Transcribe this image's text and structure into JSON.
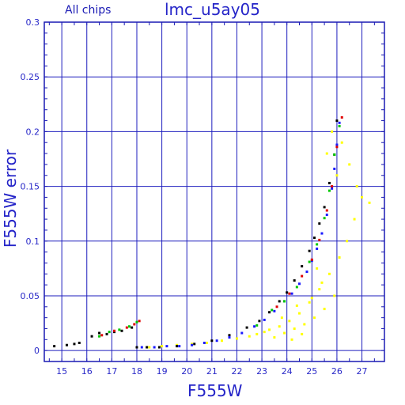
{
  "chart_data": {
    "type": "scatter",
    "title": "lmc_u5ay05",
    "subtitle": "All chips",
    "xlabel": "F555W",
    "ylabel": "F555W error",
    "xlim": [
      14.3,
      27.9
    ],
    "ylim": [
      -0.01,
      0.3
    ],
    "x_ticks": [
      "15",
      "16",
      "17",
      "18",
      "19",
      "20",
      "21",
      "22",
      "23",
      "24",
      "25",
      "26",
      "27"
    ],
    "y_ticks": [
      "0",
      "0.05",
      "0.1",
      "0.15",
      "0.2",
      "0.25",
      "0.3"
    ],
    "grid": true,
    "colors": {
      "axis": "#1a1ab4",
      "grid": "#1e1ebe",
      "tick_label": "#2828c8",
      "chip_black": "#000000",
      "chip_blue": "#1a1aff",
      "chip_green": "#00c800",
      "chip_red": "#e00000",
      "chip_yellow": "#ffff00"
    },
    "series": [
      {
        "color": "black",
        "x": [
          14.7,
          15.2,
          15.5,
          15.7,
          16.2,
          16.5,
          16.8,
          17.1,
          17.4,
          17.8,
          18.0,
          18.4,
          18.9,
          19.6,
          20.3,
          21.0,
          21.7,
          22.4,
          22.9,
          23.3,
          23.7,
          24.0,
          24.3,
          24.6,
          24.9,
          25.1,
          25.3,
          25.5,
          25.7,
          25.9,
          26.0
        ],
        "y": [
          0.004,
          0.005,
          0.006,
          0.007,
          0.013,
          0.016,
          0.015,
          0.017,
          0.018,
          0.021,
          0.003,
          0.003,
          0.003,
          0.004,
          0.006,
          0.009,
          0.014,
          0.021,
          0.027,
          0.035,
          0.045,
          0.053,
          0.064,
          0.077,
          0.091,
          0.103,
          0.116,
          0.131,
          0.153,
          0.179,
          0.21
        ]
      },
      {
        "color": "blue",
        "x": [
          18.2,
          18.7,
          19.2,
          19.7,
          20.2,
          20.7,
          21.2,
          21.7,
          22.2,
          22.7,
          23.1,
          23.5,
          23.9,
          24.2,
          24.5,
          24.8,
          25.0,
          25.2,
          25.4,
          25.6,
          25.8,
          25.9,
          26.0,
          26.1
        ],
        "y": [
          0.003,
          0.003,
          0.004,
          0.004,
          0.005,
          0.007,
          0.009,
          0.012,
          0.016,
          0.022,
          0.028,
          0.036,
          0.045,
          0.052,
          0.061,
          0.072,
          0.082,
          0.093,
          0.107,
          0.124,
          0.148,
          0.166,
          0.188,
          0.208
        ]
      },
      {
        "color": "green",
        "x": [
          16.5,
          16.9,
          17.3,
          17.7,
          18.0,
          22.8,
          23.4,
          23.9,
          24.4,
          24.9,
          25.2,
          25.5,
          25.7,
          25.9,
          26.1
        ],
        "y": [
          0.013,
          0.017,
          0.019,
          0.022,
          0.026,
          0.023,
          0.037,
          0.045,
          0.058,
          0.081,
          0.097,
          0.121,
          0.146,
          0.179,
          0.205
        ]
      },
      {
        "color": "red",
        "x": [
          16.6,
          17.1,
          17.6,
          17.9,
          18.1,
          23.6,
          24.1,
          24.6,
          25.0,
          25.3,
          25.6,
          25.8,
          26.0,
          26.2
        ],
        "y": [
          0.014,
          0.018,
          0.021,
          0.024,
          0.027,
          0.04,
          0.052,
          0.068,
          0.083,
          0.101,
          0.128,
          0.15,
          0.186,
          0.213
        ]
      },
      {
        "color": "yellow",
        "x": [
          18.5,
          19.0,
          19.6,
          20.2,
          20.8,
          21.4,
          22.0,
          22.5,
          22.8,
          23.1,
          23.3,
          23.5,
          23.7,
          23.9,
          24.1,
          24.3,
          24.5,
          24.7,
          24.9,
          25.1,
          25.3,
          25.5,
          25.7,
          25.9,
          26.1,
          26.4,
          26.7,
          27.0,
          27.3,
          25.6,
          25.8,
          26.0,
          26.2,
          26.5,
          26.8,
          24.2,
          24.6,
          25.0,
          25.4,
          23.8,
          24.4,
          25.2
        ],
        "y": [
          0.003,
          0.004,
          0.005,
          0.006,
          0.007,
          0.009,
          0.011,
          0.013,
          0.015,
          0.017,
          0.019,
          0.012,
          0.022,
          0.016,
          0.027,
          0.02,
          0.034,
          0.024,
          0.044,
          0.03,
          0.056,
          0.038,
          0.07,
          0.05,
          0.085,
          0.1,
          0.12,
          0.14,
          0.135,
          0.18,
          0.2,
          0.16,
          0.19,
          0.17,
          0.15,
          0.01,
          0.015,
          0.048,
          0.062,
          0.03,
          0.041,
          0.075
        ]
      }
    ]
  }
}
